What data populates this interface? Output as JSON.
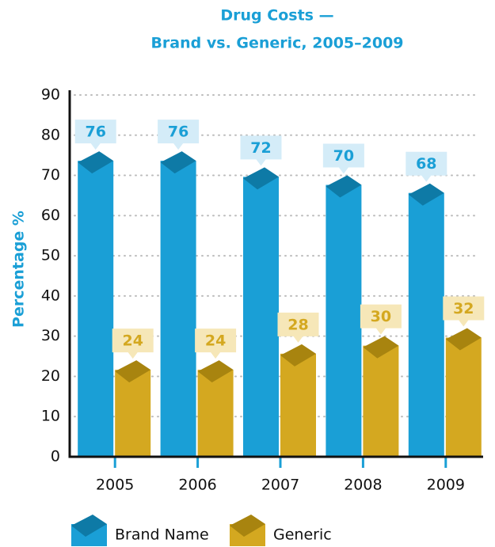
{
  "chart_data": {
    "type": "bar",
    "title": [
      "Drug Costs —",
      "Brand vs. Generic, 2005–2009"
    ],
    "y_label": "Percentage %",
    "categories": [
      "2005",
      "2006",
      "2007",
      "2008",
      "2009"
    ],
    "series": [
      {
        "name": "Brand Name",
        "color": "#1a9fd6",
        "values": [
          76,
          76,
          72,
          70,
          68
        ]
      },
      {
        "name": "Generic",
        "color": "#d4a820",
        "values": [
          24,
          24,
          28,
          30,
          32
        ]
      }
    ],
    "ylim": [
      0,
      90
    ],
    "yticks": [
      0,
      10,
      20,
      30,
      40,
      50,
      60,
      70,
      80,
      90
    ],
    "grid": true
  }
}
